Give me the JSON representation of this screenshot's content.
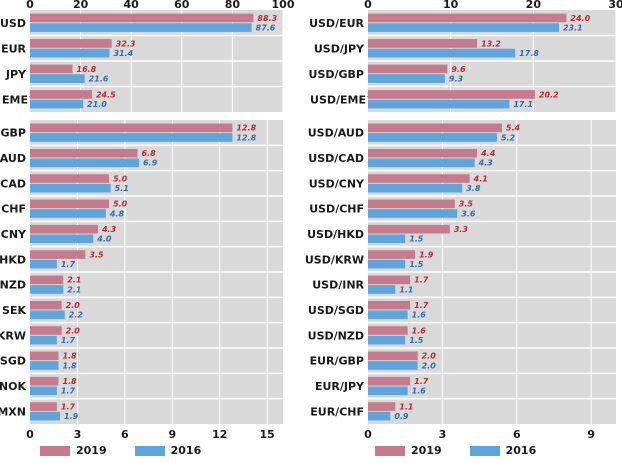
{
  "colors": {
    "y2019": "#C57B8C",
    "y2016": "#5DA5DB",
    "label2019": "#C0282D",
    "label2016": "#2E6DB4",
    "panel": "#D9D9D9",
    "grid": "#FFFFFF",
    "axisText": "#1A1A1A"
  },
  "legend": {
    "series_2019": "2019",
    "series_2016": "2016"
  },
  "chart_data": [
    {
      "type": "bar",
      "orientation": "horizontal",
      "categories": [
        "USD",
        "EUR",
        "JPY",
        "EME"
      ],
      "category_superscripts": [
        "",
        "",
        "",
        "3"
      ],
      "series": [
        {
          "name": "2019",
          "values": [
            88.3,
            32.3,
            16.8,
            24.5
          ],
          "labels": [
            "88.3",
            "32.3",
            "16.8",
            "24.5"
          ]
        },
        {
          "name": "2016",
          "values": [
            87.6,
            31.4,
            21.6,
            21.0
          ],
          "labels": [
            "87.6",
            "31.4",
            "21.6",
            "21.0"
          ]
        }
      ],
      "xlim": [
        0,
        100
      ],
      "xticks": [
        0,
        20,
        40,
        60,
        80,
        100
      ],
      "axis_position": "top",
      "grid": true
    },
    {
      "type": "bar",
      "orientation": "horizontal",
      "categories": [
        "USD/EUR",
        "USD/JPY",
        "USD/GBP",
        "USD/EME"
      ],
      "category_superscripts": [
        "",
        "",
        "",
        "3"
      ],
      "series": [
        {
          "name": "2019",
          "values": [
            24.0,
            13.2,
            9.6,
            20.2
          ],
          "labels": [
            "24.0",
            "13.2",
            "9.6",
            "20.2"
          ]
        },
        {
          "name": "2016",
          "values": [
            23.1,
            17.8,
            9.3,
            17.1
          ],
          "labels": [
            "23.1",
            "17.8",
            "9.3",
            "17.1"
          ]
        }
      ],
      "xlim": [
        0,
        30
      ],
      "xticks": [
        0,
        10,
        20,
        30
      ],
      "axis_position": "top",
      "grid": true
    },
    {
      "type": "bar",
      "orientation": "horizontal",
      "categories": [
        "GBP",
        "AUD",
        "CAD",
        "CHF",
        "CNY",
        "HKD",
        "NZD",
        "SEK",
        "KRW",
        "SGD",
        "NOK",
        "MXN"
      ],
      "series": [
        {
          "name": "2019",
          "values": [
            12.8,
            6.8,
            5.0,
            5.0,
            4.3,
            3.5,
            2.1,
            2.0,
            2.0,
            1.8,
            1.8,
            1.7
          ],
          "labels": [
            "12.8",
            "6.8",
            "5.0",
            "5.0",
            "4.3",
            "3.5",
            "2.1",
            "2.0",
            "2.0",
            "1.8",
            "1.8",
            "1.7"
          ]
        },
        {
          "name": "2016",
          "values": [
            12.8,
            6.9,
            5.1,
            4.8,
            4.0,
            1.7,
            2.1,
            2.2,
            1.7,
            1.8,
            1.7,
            1.9
          ],
          "labels": [
            "12.8",
            "6.9",
            "5.1",
            "4.8",
            "4.0",
            "1.7",
            "2.1",
            "2.2",
            "1.7",
            "1.8",
            "1.7",
            "1.9"
          ]
        }
      ],
      "xlim": [
        0,
        16
      ],
      "xticks": [
        0,
        3,
        6,
        9,
        12,
        15
      ],
      "axis_position": "bottom",
      "grid": true
    },
    {
      "type": "bar",
      "orientation": "horizontal",
      "categories": [
        "USD/AUD",
        "USD/CAD",
        "USD/CNY",
        "USD/CHF",
        "USD/HKD",
        "USD/KRW",
        "USD/INR",
        "USD/SGD",
        "USD/NZD",
        "EUR/GBP",
        "EUR/JPY",
        "EUR/CHF"
      ],
      "series": [
        {
          "name": "2019",
          "values": [
            5.4,
            4.4,
            4.1,
            3.5,
            3.3,
            1.9,
            1.7,
            1.7,
            1.6,
            2.0,
            1.7,
            1.1
          ],
          "labels": [
            "5.4",
            "4.4",
            "4.1",
            "3.5",
            "3.3",
            "1.9",
            "1.7",
            "1.7",
            "1.6",
            "2.0",
            "1.7",
            "1.1"
          ]
        },
        {
          "name": "2016",
          "values": [
            5.2,
            4.3,
            3.8,
            3.6,
            1.5,
            1.5,
            1.1,
            1.6,
            1.5,
            2.0,
            1.6,
            0.9
          ],
          "labels": [
            "5.2",
            "4.3",
            "3.8",
            "3.6",
            "1.5",
            "1.5",
            "1.1",
            "1.6",
            "1.5",
            "2.0",
            "1.6",
            "0.9"
          ]
        }
      ],
      "xlim": [
        0,
        10
      ],
      "xticks": [
        0,
        3,
        6,
        9
      ],
      "axis_position": "bottom",
      "grid": true
    }
  ]
}
